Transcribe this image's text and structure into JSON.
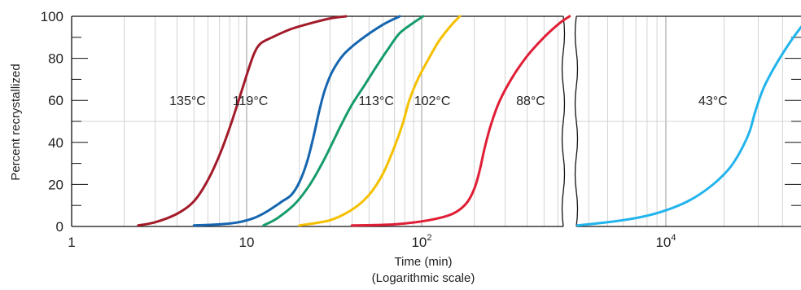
{
  "chart_data": {
    "type": "line",
    "x_scale": "log",
    "axis_break": {
      "between": [
        1000,
        2500
      ]
    },
    "xlim_panels": [
      [
        1,
        1000
      ],
      [
        2500,
        80000
      ]
    ],
    "ylim": [
      0,
      100
    ],
    "y_ticks": [
      0,
      20,
      40,
      60,
      80,
      100
    ],
    "y_tick_labels": [
      "0",
      "20",
      "40",
      "60",
      "80",
      "100"
    ],
    "x_ticks": [
      1,
      10,
      100,
      10000
    ],
    "x_tick_labels": [
      {
        "base": "1",
        "exp": ""
      },
      {
        "base": "10",
        "exp": ""
      },
      {
        "base": "10",
        "exp": "2"
      },
      {
        "base": "10",
        "exp": "4"
      }
    ],
    "ylabel": "Percent recrystallized",
    "xlabel": "Time (min)",
    "xlabel_note": "(Logarithmic scale)",
    "grid": true,
    "series": [
      {
        "name": "135°C",
        "color": "#a31b2a",
        "label_at": [
          4.6,
          60
        ],
        "points": [
          [
            2.4,
            0.5
          ],
          [
            3,
            2
          ],
          [
            4,
            6
          ],
          [
            5,
            12
          ],
          [
            6,
            22
          ],
          [
            7,
            34
          ],
          [
            8,
            47
          ],
          [
            9,
            60
          ],
          [
            10,
            72
          ],
          [
            11,
            82
          ],
          [
            12,
            87
          ],
          [
            14,
            90
          ],
          [
            18,
            94
          ],
          [
            24,
            97
          ],
          [
            30,
            99
          ],
          [
            37,
            100
          ]
        ]
      },
      {
        "name": "119°C",
        "color": "#1565b0",
        "label_at": [
          10.5,
          60
        ],
        "points": [
          [
            5,
            0.5
          ],
          [
            7,
            1
          ],
          [
            9,
            2
          ],
          [
            11,
            4
          ],
          [
            13,
            7
          ],
          [
            16,
            12
          ],
          [
            18,
            15
          ],
          [
            20,
            21
          ],
          [
            22,
            30
          ],
          [
            24,
            42
          ],
          [
            26,
            55
          ],
          [
            28,
            65
          ],
          [
            31,
            74
          ],
          [
            36,
            82
          ],
          [
            45,
            89
          ],
          [
            60,
            96
          ],
          [
            75,
            100
          ]
        ]
      },
      {
        "name": "113°C",
        "color": "#169c6a",
        "label_at": [
          55,
          60
        ],
        "points": [
          [
            12.5,
            0.5
          ],
          [
            15,
            4
          ],
          [
            19,
            11
          ],
          [
            23,
            20
          ],
          [
            27,
            30
          ],
          [
            31,
            40
          ],
          [
            35,
            49
          ],
          [
            40,
            58
          ],
          [
            47,
            67
          ],
          [
            55,
            76
          ],
          [
            65,
            85
          ],
          [
            75,
            92
          ],
          [
            90,
            97
          ],
          [
            102,
            100
          ]
        ]
      },
      {
        "name": "102°C",
        "color": "#f5c000",
        "label_at": [
          115,
          60
        ],
        "points": [
          [
            20,
            0.5
          ],
          [
            30,
            3
          ],
          [
            40,
            8
          ],
          [
            50,
            15
          ],
          [
            60,
            25
          ],
          [
            70,
            38
          ],
          [
            78,
            49
          ],
          [
            85,
            60
          ],
          [
            95,
            70
          ],
          [
            110,
            80
          ],
          [
            125,
            88
          ],
          [
            145,
            95
          ],
          [
            165,
            100
          ]
        ]
      },
      {
        "name": "88°C",
        "color": "#e01e36",
        "label_at": [
          420,
          60
        ],
        "points": [
          [
            40,
            0.5
          ],
          [
            70,
            1
          ],
          [
            110,
            3
          ],
          [
            150,
            6
          ],
          [
            180,
            11
          ],
          [
            200,
            18
          ],
          [
            215,
            27
          ],
          [
            230,
            38
          ],
          [
            250,
            49
          ],
          [
            280,
            60
          ],
          [
            330,
            71
          ],
          [
            400,
            81
          ],
          [
            500,
            90
          ],
          [
            620,
            97
          ],
          [
            700,
            100
          ]
        ]
      },
      {
        "name": "43°C",
        "color": "#22b4ec",
        "label_at": [
          17500,
          60
        ],
        "points": [
          [
            3500,
            0.5
          ],
          [
            5000,
            2
          ],
          [
            7000,
            4
          ],
          [
            9500,
            7
          ],
          [
            13000,
            12
          ],
          [
            17000,
            19
          ],
          [
            21000,
            27
          ],
          [
            24000,
            35
          ],
          [
            27000,
            45
          ],
          [
            29000,
            55
          ],
          [
            32000,
            66
          ],
          [
            37000,
            77
          ],
          [
            44000,
            88
          ],
          [
            52000,
            97
          ],
          [
            56000,
            100
          ]
        ]
      }
    ]
  }
}
